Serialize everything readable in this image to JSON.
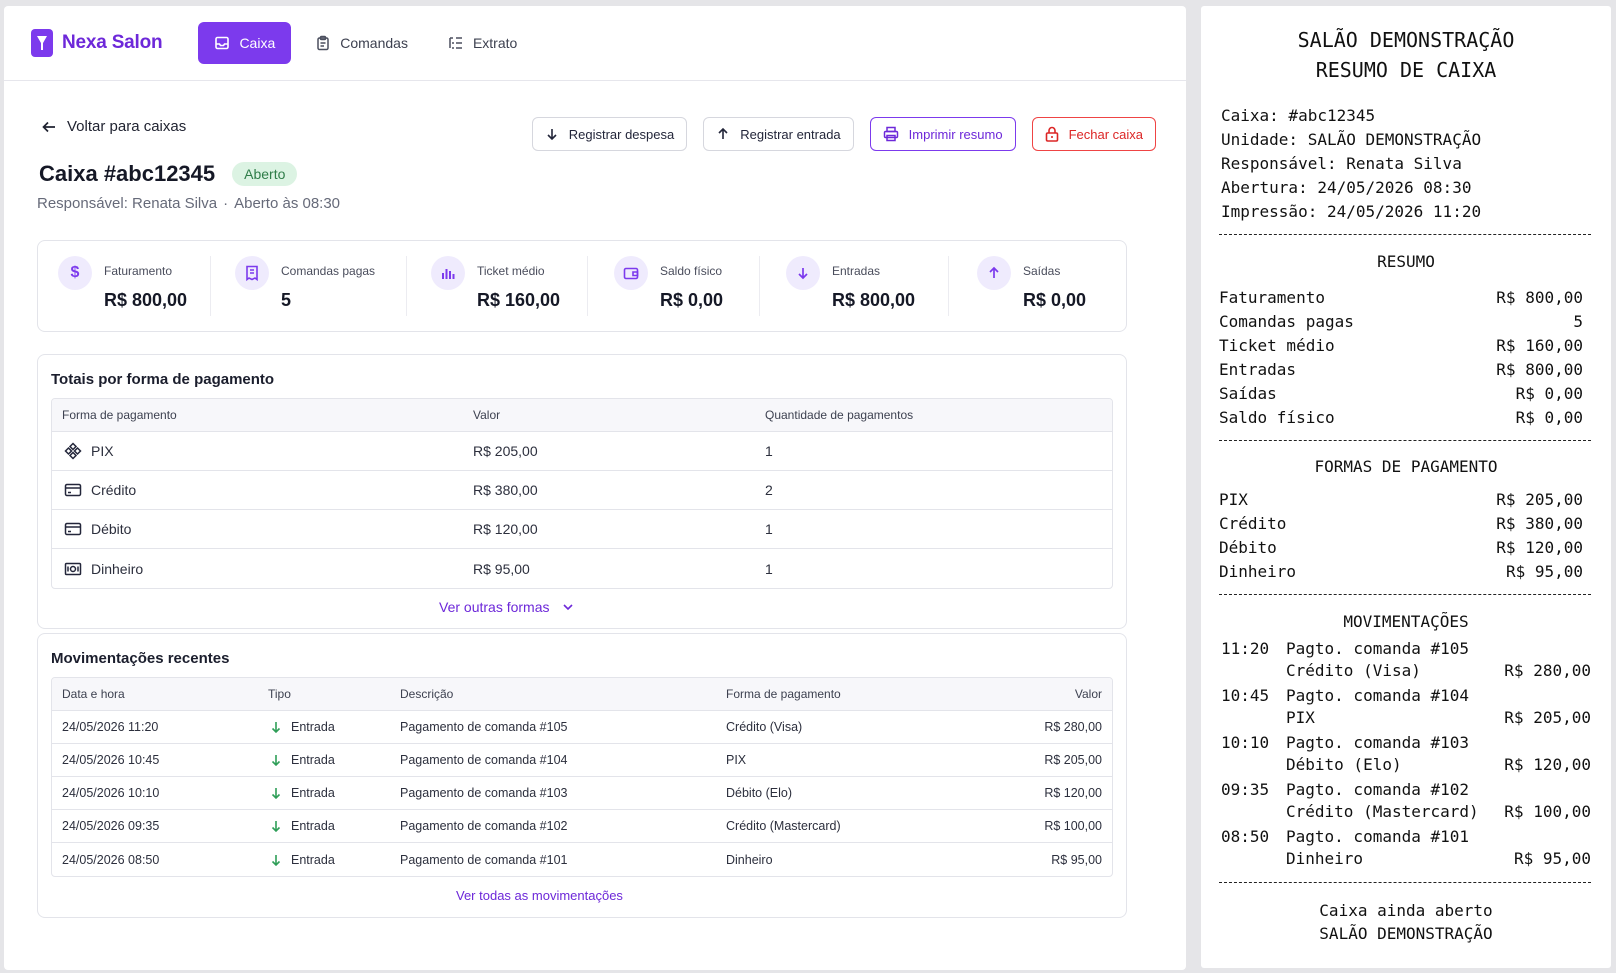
{
  "app": {
    "brand": "Nexa Salon",
    "nav": [
      {
        "label": "Caixa",
        "active": true
      },
      {
        "label": "Comandas",
        "active": false
      },
      {
        "label": "Extrato",
        "active": false
      }
    ]
  },
  "header": {
    "back_label": "Voltar para caixas",
    "title": "Caixa #abc12345",
    "status": "Aberto",
    "responsavel": "Responsável: Renata Silva",
    "aberto": "Aberto às 08:30",
    "separator": "·"
  },
  "actions": {
    "despesa": "Registrar despesa",
    "entrada": "Registrar entrada",
    "imprimir": "Imprimir resumo",
    "fechar": "Fechar caixa"
  },
  "kpis": [
    {
      "icon": "dollar-icon",
      "label": "Faturamento",
      "value": "R$ 800,00"
    },
    {
      "icon": "receipt-icon",
      "label": "Comandas pagas",
      "value": "5"
    },
    {
      "icon": "bar-chart-icon",
      "label": "Ticket médio",
      "value": "R$ 160,00"
    },
    {
      "icon": "wallet-icon",
      "label": "Saldo físico",
      "value": "R$ 0,00"
    },
    {
      "icon": "arrow-down-icon",
      "label": "Entradas",
      "value": "R$ 800,00"
    },
    {
      "icon": "arrow-up-icon",
      "label": "Saídas",
      "value": "R$ 0,00"
    }
  ],
  "payments": {
    "title": "Totais por forma de pagamento",
    "columns": [
      "Forma de pagamento",
      "Valor",
      "Quantidade de pagamentos"
    ],
    "rows": [
      {
        "icon": "pix-icon",
        "method": "PIX",
        "value": "R$ 205,00",
        "qty": "1"
      },
      {
        "icon": "credit-card-icon",
        "method": "Crédito",
        "value": "R$ 380,00",
        "qty": "2"
      },
      {
        "icon": "debit-card-icon",
        "method": "Débito",
        "value": "R$ 120,00",
        "qty": "1"
      },
      {
        "icon": "cash-icon",
        "method": "Dinheiro",
        "value": "R$ 95,00",
        "qty": "1"
      }
    ],
    "more_label": "Ver outras formas"
  },
  "movements": {
    "title": "Movimentações recentes",
    "columns": [
      "Data e hora",
      "Tipo",
      "Descrição",
      "Forma de pagamento",
      "Valor"
    ],
    "rows": [
      {
        "datetime": "24/05/2026 11:20",
        "type": "Entrada",
        "desc": "Pagamento de comanda #105",
        "method": "Crédito (Visa)",
        "value": "R$ 280,00"
      },
      {
        "datetime": "24/05/2026 10:45",
        "type": "Entrada",
        "desc": "Pagamento de comanda #104",
        "method": "PIX",
        "value": "R$ 205,00"
      },
      {
        "datetime": "24/05/2026 10:10",
        "type": "Entrada",
        "desc": "Pagamento de comanda #103",
        "method": "Débito (Elo)",
        "value": "R$ 120,00"
      },
      {
        "datetime": "24/05/2026 09:35",
        "type": "Entrada",
        "desc": "Pagamento de comanda #102",
        "method": "Crédito (Mastercard)",
        "value": "R$ 100,00"
      },
      {
        "datetime": "24/05/2026 08:50",
        "type": "Entrada",
        "desc": "Pagamento de comanda #101",
        "method": "Dinheiro",
        "value": "R$ 95,00"
      }
    ],
    "all_label": "Ver todas as movimentações"
  },
  "receipt": {
    "title1": "SALÃO DEMONSTRAÇÃO",
    "title2": "RESUMO DE CAIXA",
    "info": [
      "Caixa: #abc12345",
      "Unidade: SALÃO DEMONSTRAÇÃO",
      "Responsável: Renata Silva",
      "Abertura: 24/05/2026 08:30",
      "Impressão: 24/05/2026 11:20"
    ],
    "resumo_title": "RESUMO",
    "resumo": [
      {
        "label": "Faturamento",
        "value": "R$ 800,00"
      },
      {
        "label": "Comandas pagas",
        "value": "5"
      },
      {
        "label": "Ticket médio",
        "value": "R$ 160,00"
      },
      {
        "label": "Entradas",
        "value": "R$ 800,00"
      },
      {
        "label": "Saídas",
        "value": "R$ 0,00"
      },
      {
        "label": "Saldo físico",
        "value": "R$ 0,00"
      }
    ],
    "formas_title": "FORMAS DE PAGAMENTO",
    "formas": [
      {
        "label": "PIX",
        "value": "R$ 205,00"
      },
      {
        "label": "Crédito",
        "value": "R$ 380,00"
      },
      {
        "label": "Débito",
        "value": "R$ 120,00"
      },
      {
        "label": "Dinheiro",
        "value": "R$ 95,00"
      }
    ],
    "mov_title": "MOVIMENTAÇÕES",
    "movs": [
      {
        "time": "11:20",
        "desc": "Pagto. comanda #105",
        "method": "Crédito (Visa)",
        "value": "R$ 280,00"
      },
      {
        "time": "10:45",
        "desc": "Pagto. comanda #104",
        "method": "PIX",
        "value": "R$ 205,00"
      },
      {
        "time": "10:10",
        "desc": "Pagto. comanda #103",
        "method": "Débito (Elo)",
        "value": "R$ 120,00"
      },
      {
        "time": "09:35",
        "desc": "Pagto. comanda #102",
        "method": "Crédito (Mastercard)",
        "value": "R$ 100,00"
      },
      {
        "time": "08:50",
        "desc": "Pagto. comanda #101",
        "method": "Dinheiro",
        "value": "R$ 95,00"
      }
    ],
    "footer1": "Caixa ainda aberto",
    "footer2": "SALÃO DEMONSTRAÇÃO"
  }
}
